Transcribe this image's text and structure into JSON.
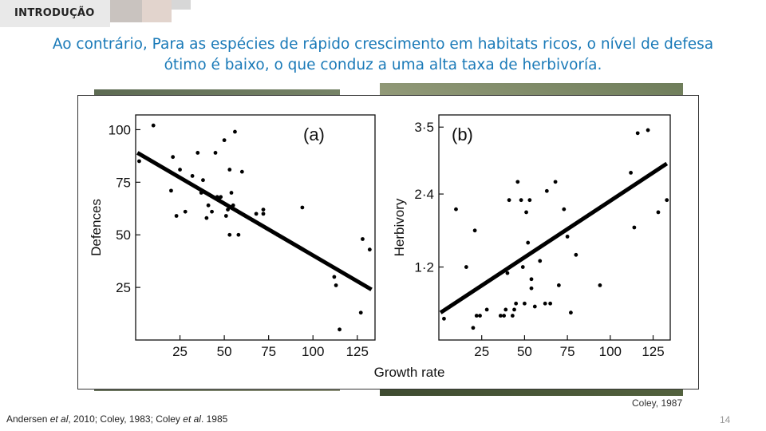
{
  "slide": {
    "section_tag": "INTRODUÇÃO",
    "heading_line1": "Ao contrário, Para as espécies de rápido crescimento em habitats ricos, o nível de defesa",
    "heading_line2": "ótimo é baixo, o que conduz a uma alta taxa de herbivoría.",
    "figure_credit": "Coley, 1987",
    "refs": {
      "part1": "Andersen ",
      "part2": "et al",
      "part3": ", 2010; Coley, 1983; Coley ",
      "part4": "et al",
      "part5": ". 1985"
    },
    "page_number": "14"
  },
  "chart_data": [
    {
      "type": "scatter",
      "panel_label": "(a)",
      "ylabel": "Defences",
      "xlabel": "Growth rate",
      "xlim": [
        0,
        135
      ],
      "ylim": [
        0,
        107
      ],
      "x_ticks": [
        25,
        50,
        75,
        100,
        125
      ],
      "y_ticks": [
        25,
        50,
        75,
        100
      ],
      "points": [
        [
          2,
          85
        ],
        [
          10,
          102
        ],
        [
          20,
          71
        ],
        [
          21,
          87
        ],
        [
          23,
          59
        ],
        [
          25,
          81
        ],
        [
          28,
          61
        ],
        [
          32,
          78
        ],
        [
          35,
          89
        ],
        [
          37,
          70
        ],
        [
          38,
          76
        ],
        [
          40,
          58
        ],
        [
          41,
          64
        ],
        [
          43,
          61
        ],
        [
          45,
          89
        ],
        [
          46,
          68
        ],
        [
          47,
          67
        ],
        [
          48,
          68
        ],
        [
          50,
          95
        ],
        [
          51,
          59
        ],
        [
          52,
          62
        ],
        [
          53,
          50
        ],
        [
          53,
          81
        ],
        [
          54,
          70
        ],
        [
          55,
          64
        ],
        [
          56,
          99
        ],
        [
          58,
          50
        ],
        [
          60,
          80
        ],
        [
          64,
          58
        ],
        [
          66,
          57
        ],
        [
          68,
          60
        ],
        [
          70,
          55
        ],
        [
          72,
          62
        ],
        [
          72,
          60
        ],
        [
          74,
          53
        ],
        [
          80,
          50
        ],
        [
          94,
          63
        ],
        [
          112,
          30
        ],
        [
          113,
          26
        ],
        [
          115,
          5
        ],
        [
          127,
          13
        ],
        [
          128,
          48
        ],
        [
          132,
          43
        ]
      ],
      "trend_line": [
        [
          1,
          89
        ],
        [
          133,
          24
        ]
      ]
    },
    {
      "type": "scatter",
      "panel_label": "(b)",
      "ylabel": "Herbivory",
      "xlabel": "Growth rate",
      "xlim": [
        0,
        135
      ],
      "ylim": [
        0,
        3.7
      ],
      "x_ticks": [
        25,
        50,
        75,
        100,
        125
      ],
      "y_ticks": [
        "1·2",
        "2·4",
        "3·5"
      ],
      "y_tick_values": [
        1.2,
        2.4,
        3.5
      ],
      "points": [
        [
          3,
          0.35
        ],
        [
          10,
          2.15
        ],
        [
          16,
          1.2
        ],
        [
          20,
          0.2
        ],
        [
          21,
          1.8
        ],
        [
          22,
          0.4
        ],
        [
          24,
          0.4
        ],
        [
          28,
          0.5
        ],
        [
          36,
          0.4
        ],
        [
          38,
          0.4
        ],
        [
          39,
          0.5
        ],
        [
          40,
          1.1
        ],
        [
          41,
          2.3
        ],
        [
          43,
          0.4
        ],
        [
          44,
          0.5
        ],
        [
          45,
          0.6
        ],
        [
          46,
          2.6
        ],
        [
          48,
          2.3
        ],
        [
          49,
          1.2
        ],
        [
          50,
          0.6
        ],
        [
          51,
          2.1
        ],
        [
          52,
          1.6
        ],
        [
          53,
          2.3
        ],
        [
          54,
          0.85
        ],
        [
          54,
          1.0
        ],
        [
          56,
          0.55
        ],
        [
          59,
          1.3
        ],
        [
          62,
          0.6
        ],
        [
          63,
          2.45
        ],
        [
          65,
          0.6
        ],
        [
          68,
          2.6
        ],
        [
          70,
          0.9
        ],
        [
          73,
          2.15
        ],
        [
          75,
          1.7
        ],
        [
          77,
          0.45
        ],
        [
          80,
          1.4
        ],
        [
          94,
          0.9
        ],
        [
          112,
          2.75
        ],
        [
          114,
          1.85
        ],
        [
          116,
          3.4
        ],
        [
          122,
          3.45
        ],
        [
          128,
          2.1
        ],
        [
          133,
          2.3
        ]
      ],
      "trend_line": [
        [
          1,
          0.45
        ],
        [
          133,
          2.9
        ]
      ]
    }
  ]
}
